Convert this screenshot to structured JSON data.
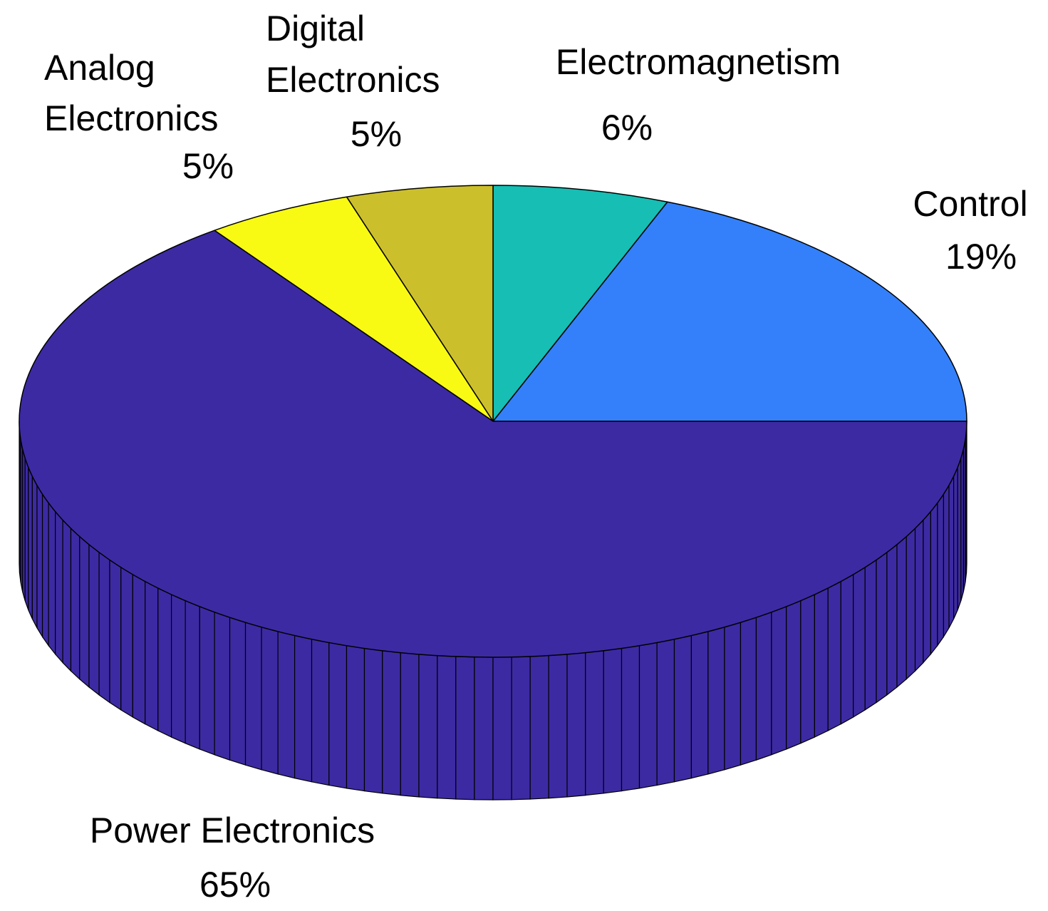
{
  "chart_data": {
    "type": "pie",
    "style": "3d",
    "title": "",
    "slices": [
      {
        "name": "Control",
        "value": 19,
        "label": "19%",
        "color": "#3380FA"
      },
      {
        "name": "Electromagnetism",
        "value": 6,
        "label": "6%",
        "color": "#16BEB4"
      },
      {
        "name": "Digital Electronics",
        "value": 5,
        "label": "5%",
        "color": "#CCBF2C"
      },
      {
        "name": "Analog Electronics",
        "value": 5,
        "label": "5%",
        "color": "#F8FA14"
      },
      {
        "name": "Power Electronics",
        "value": 65,
        "label": "65%",
        "color": "#3C2AA3"
      }
    ],
    "start_direction": "east",
    "direction": "counterclockwise"
  }
}
